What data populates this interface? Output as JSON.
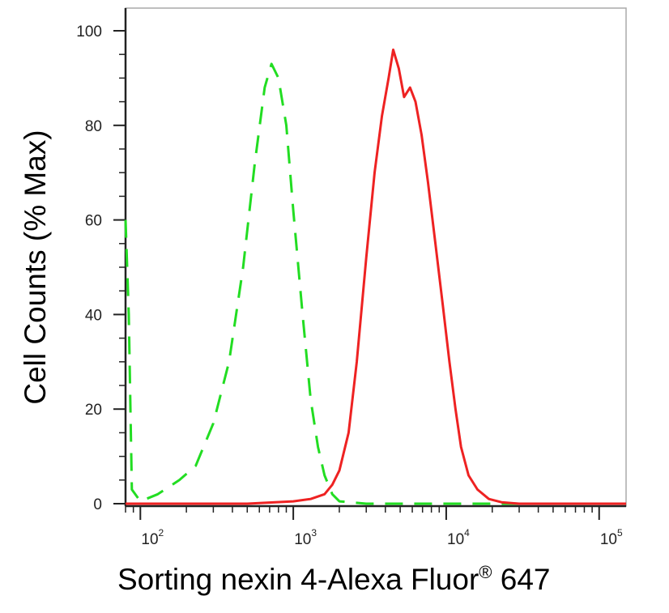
{
  "chart_data": {
    "type": "line",
    "xscale": "log",
    "xlabel": {
      "main": "Sorting nexin 4-Alexa Fluor",
      "sup": "®",
      "tail": " 647"
    },
    "ylabel": "Cell Counts (% Max)",
    "xlim": [
      80,
      150000
    ],
    "ylim": [
      0,
      105
    ],
    "y_ticks": [
      0,
      20,
      40,
      60,
      80,
      100
    ],
    "x_ticks": [
      {
        "base": "10",
        "exp": "2",
        "value": 100
      },
      {
        "base": "10",
        "exp": "3",
        "value": 1000
      },
      {
        "base": "10",
        "exp": "4",
        "value": 10000
      },
      {
        "base": "10",
        "exp": "5",
        "value": 100000
      }
    ],
    "grid": false,
    "series": [
      {
        "color": "#22dd22",
        "style": "dashed",
        "points": [
          [
            80,
            60
          ],
          [
            84,
            40
          ],
          [
            88,
            3
          ],
          [
            100,
            0.5
          ],
          [
            130,
            2
          ],
          [
            180,
            5
          ],
          [
            230,
            8
          ],
          [
            300,
            17
          ],
          [
            380,
            30
          ],
          [
            470,
            50
          ],
          [
            560,
            72
          ],
          [
            650,
            88
          ],
          [
            720,
            93
          ],
          [
            800,
            90
          ],
          [
            900,
            80
          ],
          [
            1000,
            62
          ],
          [
            1150,
            40
          ],
          [
            1300,
            22
          ],
          [
            1450,
            12
          ],
          [
            1600,
            6
          ],
          [
            1800,
            2
          ],
          [
            2000,
            0.5
          ],
          [
            3000,
            0
          ],
          [
            10000,
            0
          ],
          [
            100000,
            0
          ],
          [
            150000,
            0
          ]
        ]
      },
      {
        "color": "#ee2222",
        "style": "solid",
        "points": [
          [
            80,
            0
          ],
          [
            500,
            0
          ],
          [
            1000,
            0.5
          ],
          [
            1300,
            1
          ],
          [
            1600,
            2
          ],
          [
            1800,
            4
          ],
          [
            2000,
            7
          ],
          [
            2300,
            15
          ],
          [
            2600,
            30
          ],
          [
            3000,
            52
          ],
          [
            3400,
            70
          ],
          [
            3800,
            82
          ],
          [
            4200,
            90
          ],
          [
            4500,
            96
          ],
          [
            4900,
            92
          ],
          [
            5300,
            86
          ],
          [
            5800,
            88
          ],
          [
            6300,
            85
          ],
          [
            6900,
            78
          ],
          [
            7600,
            68
          ],
          [
            8500,
            55
          ],
          [
            9500,
            42
          ],
          [
            10500,
            30
          ],
          [
            11500,
            20
          ],
          [
            12500,
            12
          ],
          [
            14000,
            6
          ],
          [
            16000,
            3
          ],
          [
            19000,
            1
          ],
          [
            23000,
            0.3
          ],
          [
            30000,
            0
          ],
          [
            100000,
            0
          ],
          [
            150000,
            0
          ]
        ]
      }
    ]
  }
}
